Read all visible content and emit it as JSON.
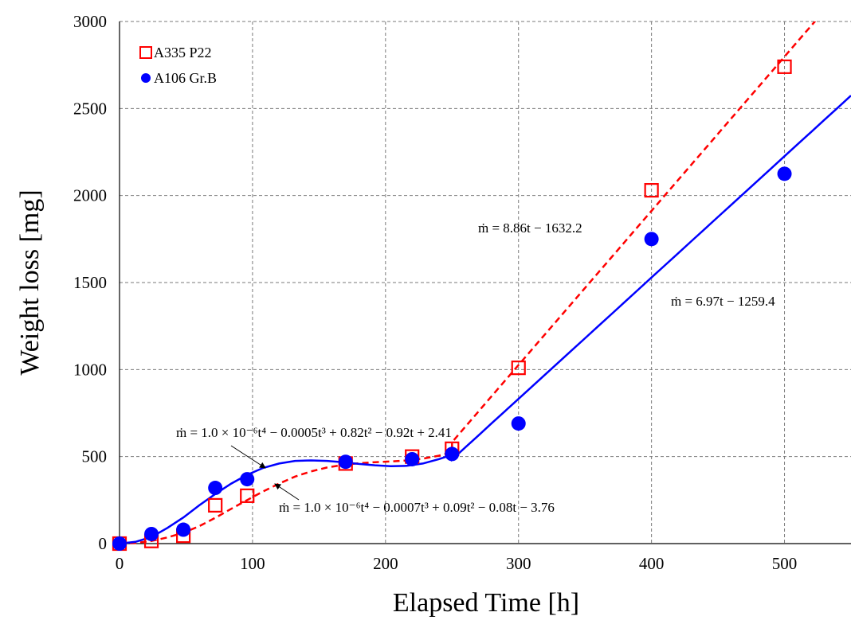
{
  "chart_data": {
    "type": "scatter",
    "xlabel": "Elapsed Time [h]",
    "ylabel": "Weight loss [mg]",
    "xlim": [
      -8,
      550
    ],
    "ylim": [
      0,
      3000
    ],
    "xticks": [
      0,
      100,
      200,
      300,
      400,
      500
    ],
    "yticks": [
      0,
      500,
      1000,
      1500,
      2000,
      2500,
      3000
    ],
    "grid": true,
    "legend_position": "top-left",
    "series": [
      {
        "name": "A335 P22",
        "marker": "open-square",
        "color": "#ff0000",
        "x": [
          0,
          24,
          48,
          72,
          96,
          170,
          220,
          250,
          300,
          400,
          500
        ],
        "y": [
          0,
          15,
          45,
          220,
          275,
          460,
          500,
          545,
          1010,
          2030,
          2740
        ]
      },
      {
        "name": "A106 Gr.B",
        "marker": "filled-circle",
        "color": "#0000ff",
        "x": [
          0,
          24,
          48,
          72,
          96,
          170,
          220,
          250,
          300,
          400,
          500
        ],
        "y": [
          0,
          55,
          80,
          320,
          370,
          470,
          485,
          515,
          690,
          1750,
          2125
        ]
      }
    ],
    "fits": [
      {
        "series": "A335 P22",
        "style": "dashed",
        "color": "#ff0000",
        "poly": {
          "range": [
            0,
            250
          ],
          "x": [
            0,
            12,
            24,
            36,
            48,
            60,
            72,
            84,
            96,
            108,
            120,
            132,
            144,
            156,
            168,
            180,
            192,
            204,
            216,
            228,
            240,
            250
          ],
          "y": [
            0,
            3,
            15,
            35,
            62,
            100,
            148,
            200,
            250,
            300,
            345,
            385,
            415,
            437,
            452,
            462,
            468,
            472,
            478,
            488,
            505,
            525
          ]
        },
        "line": {
          "range": [
            250,
            530
          ],
          "slope": 8.86,
          "intercept": -1632.2
        }
      },
      {
        "series": "A106 Gr.B",
        "style": "solid",
        "color": "#0000ff",
        "poly": {
          "range": [
            0,
            250
          ],
          "x": [
            0,
            12,
            24,
            36,
            48,
            60,
            72,
            84,
            96,
            108,
            120,
            132,
            144,
            156,
            168,
            180,
            192,
            204,
            216,
            228,
            240,
            250
          ],
          "y": [
            0,
            10,
            38,
            90,
            150,
            220,
            285,
            345,
            395,
            435,
            460,
            475,
            478,
            475,
            468,
            458,
            450,
            445,
            447,
            460,
            485,
            510
          ]
        },
        "line": {
          "range": [
            250,
            550
          ],
          "slope": 6.97,
          "intercept": -1259.4
        }
      }
    ],
    "annotations": {
      "eq_p22_line": "ṁ = 8.86t − 1632.2",
      "eq_gr_line": "ṁ = 6.97t − 1259.4",
      "eq_gr_poly": "ṁ = 1.0 × 10⁻⁶t⁴ − 0.0005t³ + 0.82t² − 0.92t + 2.41",
      "eq_p22_poly": "ṁ = 1.0 × 10⁻⁶t⁴ − 0.0007t³ + 0.09t² − 0.08t − 3.76"
    }
  }
}
